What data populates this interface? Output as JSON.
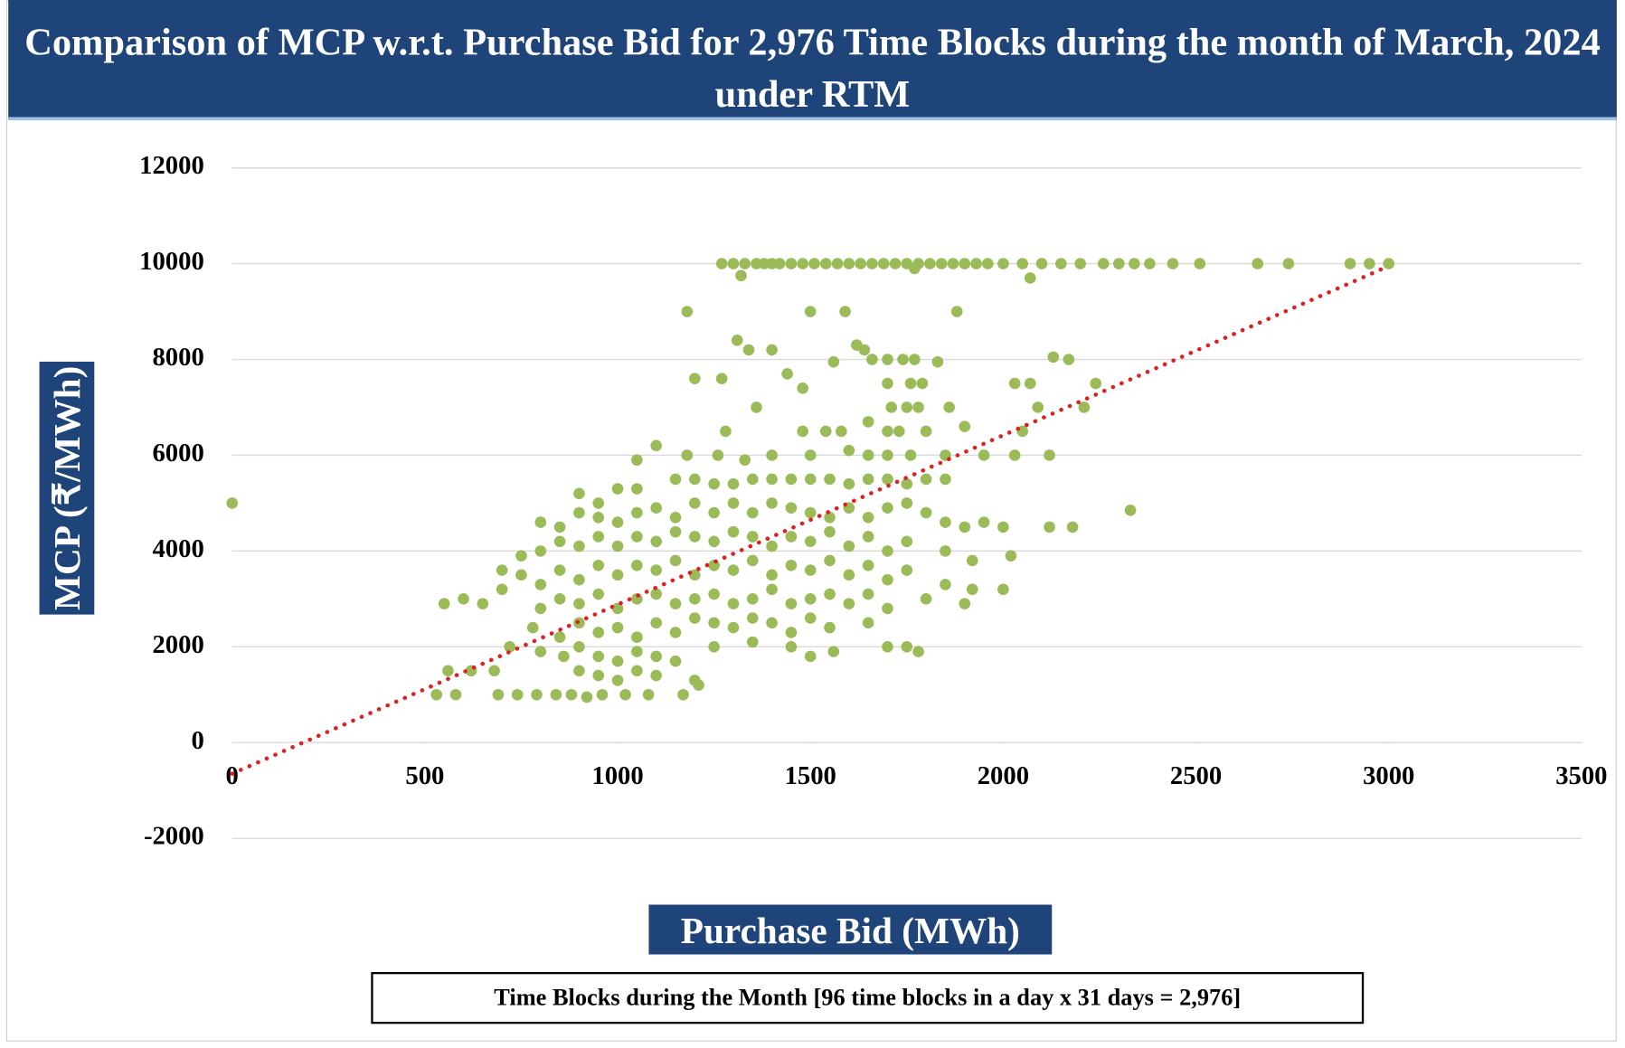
{
  "chart_data": {
    "type": "scatter",
    "title": "Comparison of MCP w.r.t. Purchase Bid for 2,976 Time Blocks during the month of  March, 2024 under RTM",
    "x_label": "Purchase Bid (MWh)",
    "y_label": "MCP (₹/MWh)",
    "note": "Time Blocks during the Month [96 time blocks in a day x 31 days = 2,976]",
    "color": "#9bbb59",
    "grid": true,
    "xlim": [
      0,
      3500
    ],
    "xticks": [
      0,
      500,
      1000,
      1500,
      2000,
      2500,
      3000,
      3500
    ],
    "ylim": [
      -2000,
      12000
    ],
    "yticks": [
      -2000,
      0,
      2000,
      4000,
      6000,
      8000,
      10000,
      12000
    ],
    "trendline": {
      "color": "#e02020",
      "x": [
        0,
        3000
      ],
      "y": [
        -650,
        9950
      ]
    },
    "x": [
      0,
      1270,
      1300,
      1330,
      1360,
      1380,
      1400,
      1420,
      1450,
      1480,
      1510,
      1540,
      1570,
      1600,
      1630,
      1660,
      1690,
      1720,
      1750,
      1780,
      1810,
      1840,
      1870,
      1900,
      1930,
      1960,
      2000,
      2050,
      2100,
      2150,
      2200,
      2260,
      2300,
      2340,
      2380,
      2440,
      2510,
      2660,
      2740,
      2900,
      2950,
      3000,
      1320,
      1770,
      2070,
      1180,
      1500,
      1590,
      1880,
      1310,
      1340,
      1620,
      1640,
      1400,
      1560,
      1660,
      1700,
      1740,
      1770,
      1830,
      2130,
      2170,
      1200,
      1270,
      1440,
      1480,
      1700,
      1760,
      1790,
      2030,
      2070,
      2240,
      1360,
      1710,
      1750,
      1780,
      1860,
      2210,
      2090,
      1280,
      1480,
      1540,
      1580,
      1650,
      1700,
      1730,
      1800,
      1900,
      2050,
      900,
      950,
      1000,
      1050,
      1100,
      1050,
      1150,
      1200,
      1250,
      1300,
      1350,
      1400,
      1450,
      1500,
      1550,
      1600,
      1650,
      1700,
      1750,
      1800,
      1850,
      1180,
      1260,
      1330,
      1400,
      1500,
      1600,
      1650,
      1700,
      1760,
      1850,
      1950,
      2030,
      2120,
      800,
      850,
      900,
      950,
      1000,
      1050,
      1100,
      1150,
      1200,
      1250,
      1300,
      1350,
      1400,
      1450,
      1500,
      1550,
      1600,
      1650,
      1700,
      1750,
      1800,
      1850,
      1900,
      1950,
      2000,
      2120,
      2180,
      2330,
      750,
      800,
      850,
      900,
      950,
      1000,
      1050,
      1100,
      1150,
      1200,
      1250,
      1300,
      1350,
      1400,
      1450,
      1500,
      1550,
      1600,
      1650,
      1700,
      1750,
      1850,
      1920,
      2020,
      700,
      750,
      800,
      850,
      900,
      950,
      1000,
      1050,
      1100,
      1150,
      1200,
      1250,
      1300,
      1350,
      1400,
      1450,
      1500,
      1550,
      1600,
      1650,
      1700,
      1750,
      1850,
      1920,
      2000,
      550,
      600,
      650,
      700,
      800,
      850,
      900,
      950,
      1000,
      1050,
      1100,
      1150,
      1200,
      1250,
      1300,
      1350,
      1400,
      1450,
      1500,
      1550,
      1600,
      1650,
      1700,
      1800,
      1900,
      780,
      850,
      900,
      950,
      1000,
      1050,
      1100,
      1150,
      1200,
      1250,
      1300,
      1350,
      1400,
      1450,
      1500,
      1550,
      1650,
      720,
      800,
      860,
      900,
      950,
      1000,
      1050,
      1100,
      1150,
      1250,
      1350,
      1450,
      1500,
      1560,
      1700,
      1750,
      1780,
      560,
      620,
      680,
      900,
      950,
      1000,
      1050,
      1100,
      1200,
      1210,
      530,
      580,
      690,
      740,
      790,
      840,
      880,
      920,
      960,
      1020,
      1080,
      1170
    ],
    "values": [
      5000,
      10000,
      10000,
      10000,
      10000,
      10000,
      10000,
      10000,
      10000,
      10000,
      10000,
      10000,
      10000,
      10000,
      10000,
      10000,
      10000,
      10000,
      10000,
      10000,
      10000,
      10000,
      10000,
      10000,
      10000,
      10000,
      10000,
      10000,
      10000,
      10000,
      10000,
      10000,
      10000,
      10000,
      10000,
      10000,
      10000,
      10000,
      10000,
      10000,
      10000,
      10000,
      9750,
      9900,
      9700,
      9000,
      9000,
      9000,
      9000,
      8400,
      8200,
      8300,
      8200,
      8200,
      7950,
      8000,
      8000,
      8000,
      8000,
      7950,
      8050,
      8000,
      7600,
      7600,
      7700,
      7400,
      7500,
      7500,
      7500,
      7500,
      7500,
      7500,
      7000,
      7000,
      7000,
      7000,
      7000,
      7000,
      7000,
      6500,
      6500,
      6500,
      6500,
      6700,
      6500,
      6500,
      6500,
      6600,
      6500,
      5200,
      5000,
      5300,
      5300,
      6200,
      5900,
      5500,
      5500,
      5400,
      5400,
      5500,
      5500,
      5500,
      5500,
      5500,
      5400,
      5500,
      5500,
      5400,
      5500,
      5500,
      6000,
      6000,
      5900,
      6000,
      6000,
      6100,
      6000,
      6000,
      6000,
      6000,
      6000,
      6000,
      6000,
      4600,
      4500,
      4800,
      4700,
      4600,
      4800,
      4900,
      4700,
      5000,
      4800,
      5000,
      4800,
      5000,
      4900,
      4800,
      4700,
      4900,
      4700,
      4900,
      5000,
      4800,
      4600,
      4500,
      4600,
      4500,
      4500,
      4500,
      4850,
      3900,
      4000,
      4200,
      4100,
      4300,
      4100,
      4300,
      4200,
      4400,
      4300,
      4200,
      4400,
      4300,
      4100,
      4300,
      4200,
      4400,
      4100,
      4300,
      4000,
      4200,
      4000,
      3800,
      3900,
      3600,
      3500,
      3300,
      3600,
      3400,
      3700,
      3500,
      3700,
      3600,
      3800,
      3500,
      3700,
      3600,
      3800,
      3500,
      3700,
      3600,
      3800,
      3500,
      3700,
      3400,
      3600,
      3300,
      3200,
      3200,
      2900,
      3000,
      2900,
      3200,
      2800,
      3000,
      2900,
      3100,
      2800,
      3000,
      3100,
      2900,
      3000,
      3100,
      2900,
      3000,
      3200,
      2900,
      3000,
      3100,
      2900,
      3100,
      2800,
      3000,
      2900,
      2400,
      2200,
      2500,
      2300,
      2400,
      2200,
      2500,
      2300,
      2600,
      2500,
      2400,
      2600,
      2500,
      2300,
      2600,
      2400,
      2500,
      2000,
      1900,
      1800,
      2000,
      1800,
      1700,
      1900,
      1800,
      1700,
      2000,
      2100,
      2000,
      1800,
      1900,
      2000,
      2000,
      1900,
      1500,
      1500,
      1500,
      1500,
      1400,
      1300,
      1500,
      1400,
      1300,
      1200,
      1000,
      1000,
      1000,
      1000,
      1000,
      1000,
      1000,
      950,
      1000,
      1000,
      1000,
      1000
    ]
  }
}
